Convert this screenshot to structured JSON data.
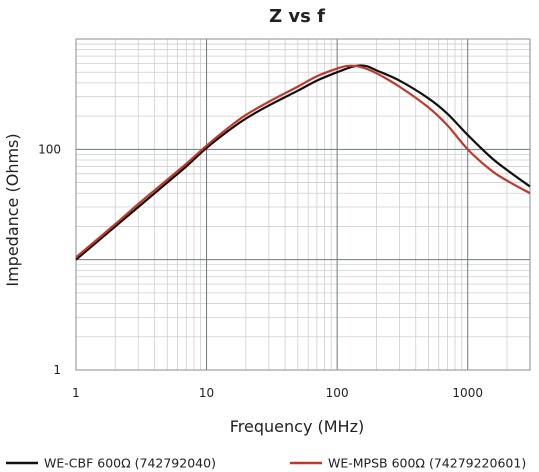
{
  "chart_data": {
    "type": "line",
    "title": "Z vs f",
    "xlabel": "Frequency (MHz)",
    "ylabel": "Impedance (Ohms)",
    "x_scale": "log",
    "y_scale": "log",
    "xlim": [
      1,
      3000
    ],
    "ylim": [
      1,
      1000
    ],
    "x_ticks": [
      1,
      10,
      100,
      1000
    ],
    "x_tick_labels": [
      "1",
      "10",
      "100",
      "1000"
    ],
    "y_ticks": [
      1,
      100
    ],
    "y_tick_labels": [
      "1",
      "100"
    ],
    "grid": true,
    "legend_position": "bottom",
    "series": [
      {
        "name": "WE-CBF 600Ω (742792040)",
        "color": "#111111",
        "x": [
          1,
          2,
          3,
          5,
          7,
          10,
          15,
          20,
          30,
          50,
          70,
          100,
          130,
          150,
          170,
          200,
          300,
          500,
          700,
          1000,
          1500,
          2000,
          3000
        ],
        "y": [
          10,
          20,
          30,
          50,
          70,
          103,
          150,
          190,
          250,
          340,
          420,
          500,
          560,
          575,
          565,
          520,
          420,
          290,
          210,
          135,
          85,
          65,
          46
        ]
      },
      {
        "name": "WE-MPSB 600Ω (74279220601)",
        "color": "#c0392b",
        "x": [
          1,
          2,
          3,
          5,
          7,
          10,
          15,
          20,
          30,
          50,
          70,
          100,
          120,
          150,
          200,
          300,
          500,
          700,
          1000,
          1500,
          2000,
          3000
        ],
        "y": [
          10.5,
          21,
          32,
          53,
          74,
          108,
          160,
          205,
          270,
          370,
          460,
          540,
          570,
          560,
          490,
          370,
          240,
          165,
          100,
          65,
          52,
          40
        ]
      }
    ]
  }
}
